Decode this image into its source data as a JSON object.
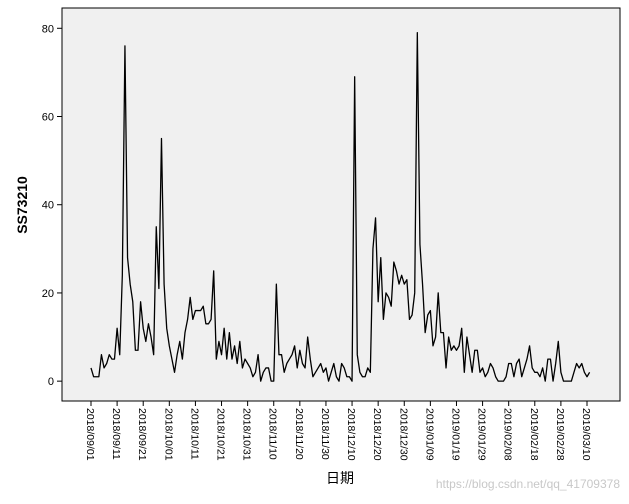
{
  "chart_data": {
    "type": "line",
    "y_label": "SS73210",
    "x_label": "日期",
    "watermark": "https://blog.csdn.net/qq_41709378",
    "color": "#000000",
    "ylim": [
      -4.5,
      84.6
    ],
    "yticks": [
      0,
      20,
      40,
      60,
      80
    ],
    "background": "#f0f0f0",
    "categories": [
      "2018/09/01",
      null,
      null,
      null,
      null,
      null,
      null,
      null,
      null,
      null,
      "2018/09/11",
      null,
      null,
      null,
      null,
      null,
      null,
      null,
      null,
      null,
      "2018/09/21",
      null,
      null,
      null,
      null,
      null,
      null,
      null,
      null,
      null,
      "2018/10/01",
      null,
      null,
      null,
      null,
      null,
      null,
      null,
      null,
      null,
      "2018/10/11",
      null,
      null,
      null,
      null,
      null,
      null,
      null,
      null,
      null,
      "2018/10/21",
      null,
      null,
      null,
      null,
      null,
      null,
      null,
      null,
      null,
      "2018/10/31",
      null,
      null,
      null,
      null,
      null,
      null,
      null,
      null,
      null,
      "2018/11/10",
      null,
      null,
      null,
      null,
      null,
      null,
      null,
      null,
      null,
      "2018/11/20",
      null,
      null,
      null,
      null,
      null,
      null,
      null,
      null,
      null,
      "2018/11/30",
      null,
      null,
      null,
      null,
      null,
      null,
      null,
      null,
      null,
      "2018/12/10",
      null,
      null,
      null,
      null,
      null,
      null,
      null,
      null,
      null,
      "2018/12/20",
      null,
      null,
      null,
      null,
      null,
      null,
      null,
      null,
      null,
      "2018/12/30",
      null,
      null,
      null,
      null,
      null,
      null,
      null,
      null,
      null,
      "2019/01/09",
      null,
      null,
      null,
      null,
      null,
      null,
      null,
      null,
      null,
      "2019/01/19",
      null,
      null,
      null,
      null,
      null,
      null,
      null,
      null,
      null,
      "2019/01/29",
      null,
      null,
      null,
      null,
      null,
      null,
      null,
      null,
      null,
      "2019/02/08",
      null,
      null,
      null,
      null,
      null,
      null,
      null,
      null,
      null,
      "2019/02/18",
      null,
      null,
      null,
      null,
      null,
      null,
      null,
      null,
      null,
      "2019/02/28",
      null,
      null,
      null,
      null,
      null,
      null,
      null,
      null,
      null,
      "2019/03/10",
      null
    ],
    "values": [
      3,
      1,
      1,
      1,
      6,
      3,
      4,
      6,
      5,
      5,
      12,
      6,
      24,
      76,
      28,
      22,
      18,
      7,
      7,
      18,
      12,
      9,
      13,
      10,
      6,
      35,
      21,
      55,
      22,
      12,
      8,
      5,
      2,
      6,
      9,
      5,
      11,
      14,
      19,
      14,
      16,
      16,
      16,
      17,
      13,
      13,
      14,
      25,
      5,
      9,
      6,
      12,
      5,
      11,
      5,
      8,
      4,
      9,
      3,
      5,
      4,
      3,
      1,
      2,
      6,
      0,
      2,
      3,
      3,
      0,
      0,
      22,
      6,
      6,
      2,
      4,
      5,
      6,
      8,
      3,
      7,
      4,
      3,
      10,
      5,
      1,
      2,
      3,
      4,
      2,
      3,
      0,
      2,
      4,
      1,
      0,
      4,
      3,
      1,
      1,
      0,
      69,
      6,
      2,
      1,
      1,
      3,
      2,
      30,
      37,
      18,
      28,
      14,
      20,
      19,
      17,
      27,
      25,
      22,
      24,
      22,
      23,
      14,
      15,
      20,
      79,
      31,
      22,
      11,
      15,
      16,
      8,
      10,
      20,
      11,
      11,
      3,
      10,
      7,
      8,
      7,
      8,
      12,
      2,
      10,
      6,
      2,
      7,
      7,
      2,
      3,
      1,
      2,
      4,
      3,
      1,
      0,
      0,
      0,
      1,
      4,
      4,
      1,
      4,
      5,
      1,
      3,
      5,
      8,
      3,
      2,
      2,
      1,
      3,
      0,
      5,
      5,
      0,
      4,
      9,
      2,
      0,
      0,
      0,
      0,
      2,
      4,
      3,
      4,
      2,
      1,
      2
    ]
  }
}
